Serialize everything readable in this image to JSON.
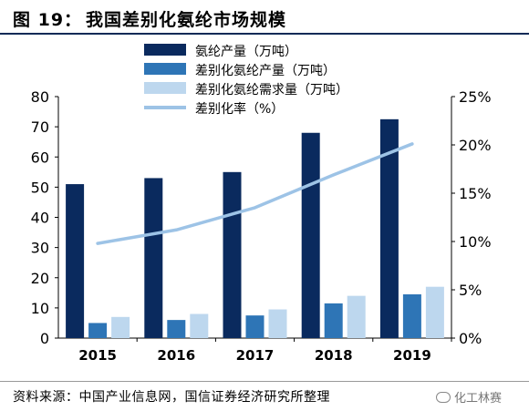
{
  "figure": {
    "label": "图 19：",
    "title": "我国差别化氨纶市场规模"
  },
  "source": "资料来源：中国产业信息网，国信证券经济研究所整理",
  "watermark": "化工林赛",
  "chart_data": {
    "type": "bar",
    "categories": [
      "2015",
      "2016",
      "2017",
      "2018",
      "2019"
    ],
    "series": [
      {
        "name": "氨纶产量（万吨）",
        "type": "bar",
        "axis": "left",
        "color": "#0a2a5e",
        "values": [
          51,
          53,
          55,
          68,
          72.5
        ]
      },
      {
        "name": "差别化氨纶产量（万吨）",
        "type": "bar",
        "axis": "left",
        "color": "#2e75b6",
        "values": [
          5,
          6,
          7.5,
          11.5,
          14.5
        ]
      },
      {
        "name": "差别化氨纶需求量（万吨）",
        "type": "bar",
        "axis": "left",
        "color": "#bdd7ee",
        "values": [
          7,
          8,
          9.5,
          14,
          17
        ]
      },
      {
        "name": "差别化率（%）",
        "type": "line",
        "axis": "right",
        "color": "#9dc3e6",
        "values": [
          9.8,
          11.2,
          13.5,
          16.9,
          20.1
        ]
      }
    ],
    "y_left": {
      "ylim": [
        0,
        80
      ],
      "ticks": [
        "0",
        "10",
        "20",
        "30",
        "40",
        "50",
        "60",
        "70",
        "80"
      ]
    },
    "y_right": {
      "ylim": [
        0,
        25
      ],
      "ticks": [
        "0%",
        "5%",
        "10%",
        "15%",
        "20%",
        "25%"
      ]
    },
    "legend_position": "top-center",
    "grid": false
  }
}
